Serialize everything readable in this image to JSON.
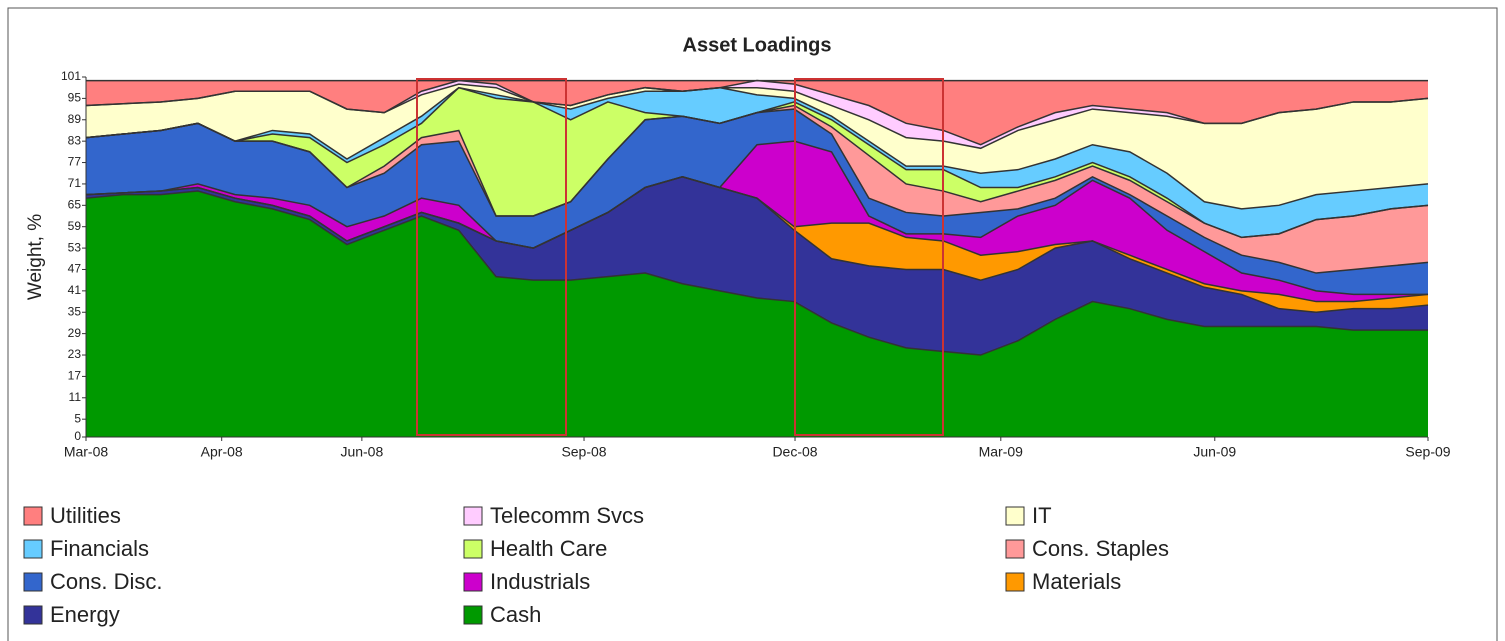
{
  "chart_data": {
    "type": "stacked-area",
    "title": "Asset Loadings",
    "y_label": "Weight, %",
    "xlim": [
      0,
      18
    ],
    "xticks": [
      {
        "value": 0,
        "label": "Mar-08"
      },
      {
        "value": 1.82,
        "label": "Apr-08"
      },
      {
        "value": 3.7,
        "label": "Jun-08"
      },
      {
        "value": 6.68,
        "label": "Sep-08"
      },
      {
        "value": 9.51,
        "label": "Dec-08"
      },
      {
        "value": 12.27,
        "label": "Mar-09"
      },
      {
        "value": 15.14,
        "label": "Jun-09"
      },
      {
        "value": 18,
        "label": "Sep-09"
      }
    ],
    "ylim": [
      0,
      101
    ],
    "yticks": [
      0,
      5,
      11,
      17,
      23,
      29,
      35,
      41,
      47,
      53,
      59,
      65,
      71,
      77,
      83,
      89,
      95,
      101
    ],
    "x": [
      0,
      0.5,
      1,
      1.5,
      2,
      2.5,
      3,
      3.5,
      4,
      4.5,
      5,
      5.5,
      6,
      6.5,
      7,
      7.5,
      8,
      8.5,
      9,
      9.5,
      10,
      10.5,
      11,
      11.5,
      12,
      12.5,
      13,
      13.5,
      14,
      14.5,
      15,
      15.5,
      16,
      16.5,
      17,
      17.5,
      18
    ],
    "series": [
      {
        "name": "Cash",
        "color": "#009900",
        "values": [
          67,
          68,
          68,
          69,
          66,
          64,
          61,
          54,
          58,
          62,
          58,
          45,
          44,
          44,
          45,
          46,
          43,
          41,
          39,
          38,
          32,
          28,
          25,
          24,
          23,
          27,
          33,
          38,
          36,
          33,
          31,
          31,
          31,
          31,
          30,
          30,
          30
        ]
      },
      {
        "name": "Energy",
        "color": "#333399",
        "values": [
          1,
          0.5,
          1,
          1,
          1,
          1,
          1,
          1,
          1,
          1,
          2,
          10,
          9,
          14,
          18,
          24,
          30,
          29,
          28,
          20,
          18,
          20,
          22,
          23,
          21,
          20,
          20,
          17,
          14,
          13,
          11,
          9,
          5,
          4,
          6,
          6,
          7
        ]
      },
      {
        "name": "Materials",
        "color": "#ff9900",
        "values": [
          0,
          0,
          0,
          0,
          0,
          0,
          0,
          0,
          0,
          0,
          0,
          0,
          0,
          0,
          0,
          0,
          0,
          0,
          0,
          1,
          10,
          12,
          9,
          8,
          7,
          5,
          1,
          0,
          1,
          1,
          1,
          1,
          4,
          3,
          2,
          3,
          3
        ]
      },
      {
        "name": "Industrials",
        "color": "#cc00cc",
        "values": [
          0,
          0,
          0,
          1,
          1,
          2,
          3,
          4,
          3,
          4,
          5,
          0,
          0,
          0,
          0,
          0,
          0,
          0,
          15,
          24,
          20,
          2,
          1,
          2,
          5,
          10,
          11,
          17,
          16,
          11,
          9,
          5,
          4,
          3,
          2,
          1,
          0
        ]
      },
      {
        "name": "Cons. Disc.",
        "color": "#3366cc",
        "values": [
          16,
          16.5,
          17,
          17,
          15,
          16,
          15,
          11,
          12,
          15,
          18,
          7,
          9,
          8,
          15,
          19,
          17,
          18,
          9,
          9,
          5,
          5,
          6,
          5,
          7,
          2,
          2,
          1,
          1,
          4,
          4,
          5,
          5,
          5,
          7,
          8,
          9
        ]
      },
      {
        "name": "Cons. Staples",
        "color": "#ff9999",
        "values": [
          0,
          0,
          0,
          0,
          0,
          0,
          0,
          0,
          2,
          2,
          3,
          0,
          0,
          0,
          0,
          0,
          0,
          0,
          0,
          1,
          2,
          12,
          8,
          7,
          3,
          5,
          5,
          3,
          4,
          4,
          4,
          5,
          8,
          15,
          15,
          16,
          16
        ]
      },
      {
        "name": "Health Care",
        "color": "#ccff66",
        "values": [
          0,
          0,
          0,
          0,
          0,
          2,
          4,
          7,
          6,
          4,
          12,
          33,
          32,
          23,
          16,
          2,
          0,
          0,
          0,
          1,
          2,
          3,
          4,
          6,
          4,
          1,
          1,
          1,
          1,
          1,
          0,
          0,
          0,
          0,
          0,
          0,
          0
        ]
      },
      {
        "name": "Financials",
        "color": "#66ccff",
        "values": [
          0,
          0,
          0,
          0,
          0,
          1,
          1,
          1,
          2,
          2,
          0,
          1,
          0,
          3,
          1,
          6,
          7,
          10,
          5,
          1,
          1,
          1,
          1,
          1,
          4,
          5,
          5,
          5,
          7,
          7,
          6,
          8,
          8,
          7,
          7,
          6,
          6
        ]
      },
      {
        "name": "IT",
        "color": "#ffffcc",
        "values": [
          9,
          8.5,
          8,
          7,
          14,
          11,
          12,
          14,
          7,
          6,
          1,
          2,
          0,
          1,
          1,
          1,
          0,
          0,
          2,
          2,
          3,
          6,
          8,
          7,
          7,
          11,
          11,
          10,
          11,
          16,
          22,
          24,
          26,
          24,
          25,
          24,
          24
        ]
      },
      {
        "name": "Telecomm Svcs",
        "color": "#ffccff",
        "values": [
          0,
          0,
          0,
          0,
          0,
          0,
          0,
          0,
          0,
          1,
          1,
          1,
          0,
          0,
          0,
          0,
          0,
          0,
          2,
          2,
          3,
          4,
          4,
          3,
          1,
          1,
          2,
          1,
          1,
          1,
          0,
          0,
          0,
          0,
          0,
          0,
          0
        ]
      },
      {
        "name": "Utilities",
        "color": "#ff7f7f",
        "values": [
          7,
          6.5,
          6,
          5,
          3,
          3,
          3,
          8,
          9,
          3,
          0,
          1,
          6,
          7,
          4,
          2,
          3,
          2,
          0,
          1,
          4,
          7,
          12,
          14,
          18,
          13,
          9,
          7,
          8,
          9,
          12,
          12,
          9,
          8,
          6,
          6,
          5
        ]
      }
    ],
    "outline_color": "#333333"
  }
}
